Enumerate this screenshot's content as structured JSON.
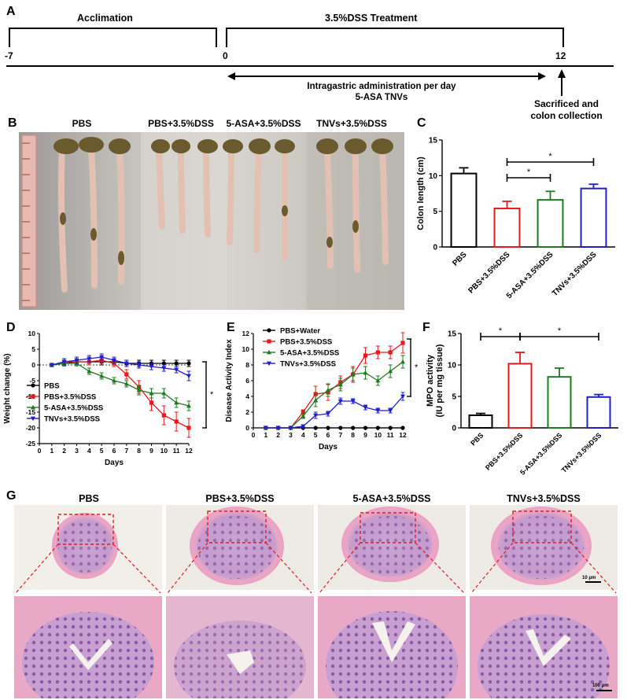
{
  "figure": {
    "panels": {
      "A": "A",
      "B": "B",
      "C": "C",
      "D": "D",
      "E": "E",
      "F": "F",
      "G": "G"
    }
  },
  "timeline": {
    "acclimation": "Acclimation",
    "treatment": "3.5%DSS Treatment",
    "ticks": [
      "-7",
      "0",
      "12"
    ],
    "admin_line1": "Intragastric administration per day",
    "admin_line2": "5-ASA  TNVs",
    "sacrifice_line1": "Sacrificed and",
    "sacrifice_line2": "colon collection"
  },
  "photo_labels": [
    "PBS",
    "PBS+3.5%DSS",
    "5-ASA+3.5%DSS",
    "TNVs+3.5%DSS"
  ],
  "histology": {
    "labels": [
      "PBS",
      "PBS+3.5%DSS",
      "5-ASA+3.5%DSS",
      "TNVs+3.5%DSS"
    ],
    "scale_top": "10 μm",
    "scale_bottom": "100 μm"
  },
  "colors": {
    "PBS": "#000000",
    "DSS": "#e41a1c",
    "ASA": "#1f7a1f",
    "TNV": "#1f1fcc"
  },
  "chart_data": [
    {
      "panel": "C",
      "type": "bar",
      "ylabel": "Colon length (cm)",
      "ylim": [
        0,
        15
      ],
      "yticks": [
        0,
        5,
        10,
        15
      ],
      "categories": [
        "PBS",
        "PBS+3.5%DSS",
        "5-ASA+3.5%DSS",
        "TNVs+3.5%DSS"
      ],
      "values": [
        10.3,
        5.4,
        6.6,
        8.2
      ],
      "errors": [
        0.8,
        1.0,
        1.2,
        0.6
      ],
      "significance": [
        {
          "from": 1,
          "to": 2,
          "label": "*"
        },
        {
          "from": 1,
          "to": 3,
          "label": "*"
        }
      ]
    },
    {
      "panel": "D",
      "type": "line",
      "xlabel": "Days",
      "ylabel": "Weight change (%)",
      "xlim": [
        0,
        12
      ],
      "ylim": [
        -25,
        10
      ],
      "xticks": [
        0,
        1,
        2,
        3,
        4,
        5,
        6,
        7,
        8,
        9,
        10,
        11,
        12
      ],
      "yticks": [
        -25,
        -20,
        -15,
        -10,
        -5,
        0,
        5,
        10
      ],
      "x": [
        1,
        2,
        3,
        4,
        5,
        6,
        7,
        8,
        9,
        10,
        11,
        12
      ],
      "series": [
        {
          "name": "PBS",
          "values": [
            0,
            0.5,
            1,
            1,
            1,
            1,
            0.5,
            0.5,
            0.5,
            0.5,
            0.5,
            0.5
          ],
          "errors": [
            0.5,
            0.8,
            1,
            1,
            1,
            1,
            1,
            1,
            1,
            1,
            1,
            1
          ]
        },
        {
          "name": "PBS+3.5%DSS",
          "values": [
            0,
            1,
            1,
            1,
            1.5,
            0.5,
            -3,
            -7,
            -12,
            -16,
            -18,
            -20
          ],
          "errors": [
            0.5,
            1,
            1,
            1,
            1,
            1,
            1.5,
            2,
            2.5,
            3,
            3,
            3
          ]
        },
        {
          "name": "5-ASA+3.5%DSS",
          "values": [
            0,
            0.5,
            0.5,
            -2,
            -3.5,
            -5,
            -6,
            -8,
            -9,
            -9,
            -12,
            -13
          ],
          "errors": [
            0.5,
            0.8,
            0.8,
            1,
            1,
            1,
            1,
            1.5,
            1.5,
            1.5,
            1.5,
            1.5
          ]
        },
        {
          "name": "TNVs+3.5%DSS",
          "values": [
            0,
            1,
            1.5,
            2,
            2.5,
            1.5,
            0.5,
            0,
            -0.5,
            -1,
            -1.5,
            -3.5
          ],
          "errors": [
            0.5,
            1,
            1,
            1,
            1,
            1,
            1,
            1,
            1,
            1,
            1,
            1.5
          ]
        }
      ],
      "legend": "bottom-left",
      "significance_label": "*"
    },
    {
      "panel": "E",
      "type": "line",
      "xlabel": "Days",
      "ylabel": "Disease Activity Index",
      "xlim": [
        0,
        12
      ],
      "ylim": [
        0,
        12
      ],
      "xticks": [
        0,
        1,
        2,
        3,
        4,
        5,
        6,
        7,
        8,
        9,
        10,
        11,
        12
      ],
      "yticks": [
        0,
        2,
        4,
        6,
        8,
        10,
        12
      ],
      "x": [
        1,
        2,
        3,
        4,
        5,
        6,
        7,
        8,
        9,
        10,
        11,
        12
      ],
      "series": [
        {
          "name": "PBS+Water",
          "values": [
            0,
            0,
            0,
            0,
            0,
            0,
            0,
            0,
            0,
            0,
            0,
            0
          ],
          "errors": [
            0,
            0,
            0,
            0,
            0,
            0,
            0,
            0,
            0,
            0,
            0,
            0
          ]
        },
        {
          "name": "PBS+3.5%DSS",
          "values": [
            0,
            0,
            0,
            2,
            4.3,
            4.5,
            5.8,
            6.8,
            9.2,
            9.6,
            9.6,
            10.8
          ],
          "errors": [
            0,
            0,
            0,
            0.3,
            1,
            1,
            0.8,
            1,
            1,
            0.8,
            0.8,
            1.3
          ]
        },
        {
          "name": "5-ASA+3.5%DSS",
          "values": [
            0,
            0,
            0,
            1.5,
            3.5,
            4.8,
            5.5,
            6.8,
            7,
            6,
            7.2,
            8.4
          ],
          "errors": [
            0,
            0,
            0,
            0.3,
            0.8,
            0.8,
            0.8,
            0.8,
            0.8,
            0.6,
            0.8,
            0.8
          ]
        },
        {
          "name": "TNVs+3.5%DSS",
          "values": [
            0,
            0,
            0,
            0.2,
            1.6,
            1.8,
            3.4,
            3.4,
            2.6,
            2.2,
            2.2,
            4
          ],
          "errors": [
            0,
            0,
            0,
            0.2,
            0.4,
            0.3,
            0.4,
            0.3,
            0.3,
            0.3,
            0.3,
            0.5
          ]
        }
      ],
      "legend": "top-left",
      "significance_label": "*"
    },
    {
      "panel": "F",
      "type": "bar",
      "ylabel": "MPO activity",
      "ylabel2": "(IU per mg tissue)",
      "ylim": [
        0,
        15
      ],
      "yticks": [
        0,
        5,
        10,
        15
      ],
      "categories": [
        "PBS",
        "PBS+3.5%DSS",
        "5-ASA+3.5%DSS",
        "TNVs+3.5%DSS"
      ],
      "values": [
        2.0,
        10.2,
        8.1,
        4.9
      ],
      "errors": [
        0.3,
        1.8,
        1.4,
        0.4
      ],
      "significance": [
        {
          "from": 0,
          "to": 1,
          "label": "*"
        },
        {
          "from": 1,
          "to": 3,
          "label": "*"
        }
      ]
    }
  ]
}
